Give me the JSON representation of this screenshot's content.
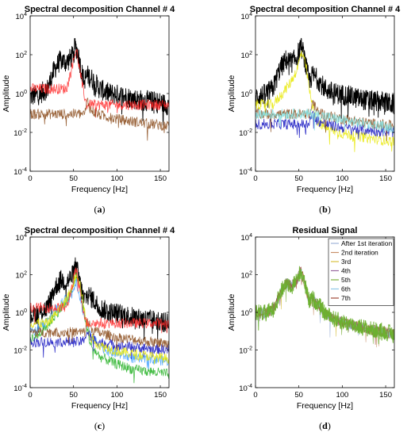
{
  "chart_data": [
    {
      "type": "line",
      "panel": "a",
      "caption": "(a)",
      "title": "Spectral decomposition Channel # 4",
      "xlabel": "Frequency [Hz]",
      "ylabel": "Amplitude",
      "xlim": [
        0,
        160
      ],
      "ylim_log10": [
        -4,
        4
      ],
      "yscale": "log",
      "x_ticks": [
        "0",
        "50",
        "100",
        "150"
      ],
      "y_ticks": [
        {
          "base": "10",
          "exp": "4"
        },
        {
          "base": "10",
          "exp": "2"
        },
        {
          "base": "10",
          "exp": "0"
        },
        {
          "base": "10",
          "exp": "-2"
        },
        {
          "base": "10",
          "exp": "-4"
        }
      ],
      "series": [
        {
          "color": "#000000",
          "kind": "spectrum",
          "x": [
            1,
            10,
            20,
            28,
            35,
            42,
            48,
            52,
            55,
            58,
            62,
            66,
            72,
            80,
            90,
            100,
            110,
            120,
            130,
            140,
            150,
            158
          ],
          "y": [
            0.8,
            1,
            2,
            20,
            60,
            45,
            90,
            300,
            150,
            30,
            5,
            10,
            6,
            2,
            1.2,
            1,
            0.8,
            0.6,
            0.5,
            0.45,
            0.4,
            0.3
          ]
        },
        {
          "color": "#ff2020",
          "kind": "component",
          "x": [
            42,
            46,
            50,
            53,
            56,
            60,
            65
          ],
          "y": [
            2,
            10,
            60,
            250,
            40,
            3,
            0.3
          ]
        },
        {
          "color": "#8a4a1a",
          "kind": "component",
          "x": [
            63,
            66,
            70,
            80,
            90,
            100,
            120,
            140,
            158
          ],
          "y": [
            0.1,
            0.5,
            0.15,
            0.09,
            0.07,
            0.055,
            0.04,
            0.03,
            0.025
          ]
        }
      ]
    },
    {
      "type": "line",
      "panel": "b",
      "caption": "(b)",
      "title": "Spectral decomposition Channel # 4",
      "xlabel": "Frequency [Hz]",
      "ylabel": "Amplitude",
      "xlim": [
        0,
        160
      ],
      "ylim_log10": [
        -4,
        4
      ],
      "yscale": "log",
      "x_ticks": [
        "0",
        "50",
        "100",
        "150"
      ],
      "y_ticks": [
        {
          "base": "10",
          "exp": "4"
        },
        {
          "base": "10",
          "exp": "2"
        },
        {
          "base": "10",
          "exp": "0"
        },
        {
          "base": "10",
          "exp": "-2"
        },
        {
          "base": "10",
          "exp": "-4"
        }
      ],
      "series": [
        {
          "color": "#000000",
          "kind": "spectrum",
          "x": [
            1,
            10,
            20,
            28,
            35,
            42,
            48,
            52,
            55,
            58,
            62,
            66,
            72,
            80,
            90,
            100,
            110,
            120,
            130,
            140,
            150,
            158
          ],
          "y": [
            0.8,
            1,
            2,
            20,
            60,
            45,
            90,
            300,
            150,
            30,
            5,
            10,
            6,
            2,
            1.2,
            1,
            0.8,
            0.6,
            0.5,
            0.45,
            0.4,
            0.3
          ]
        },
        {
          "color": "#e8e800",
          "kind": "component",
          "x": [
            20,
            30,
            40,
            48,
            53,
            58,
            64,
            70,
            80,
            100,
            120,
            140,
            158
          ],
          "y": [
            0.3,
            1,
            4,
            20,
            150,
            30,
            0.5,
            0.05,
            0.02,
            0.01,
            0.007,
            0.005,
            0.004
          ]
        },
        {
          "color": "#1010c0",
          "kind": "component",
          "x": [
            60,
            66,
            70,
            80,
            100,
            120,
            140,
            158
          ],
          "y": [
            0.03,
            0.1,
            0.05,
            0.03,
            0.02,
            0.016,
            0.013,
            0.012
          ]
        },
        {
          "color": "#8a4a1a",
          "kind": "component",
          "x": [
            63,
            66,
            70,
            80,
            90,
            100,
            120,
            140,
            158
          ],
          "y": [
            0.1,
            0.5,
            0.15,
            0.09,
            0.07,
            0.055,
            0.04,
            0.03,
            0.025
          ]
        },
        {
          "color": "#80e0e0",
          "kind": "component",
          "x": [
            60,
            70,
            90,
            110,
            130,
            158
          ],
          "y": [
            0.1,
            0.1,
            0.06,
            0.04,
            0.03,
            0.02
          ]
        }
      ]
    },
    {
      "type": "line",
      "panel": "c",
      "caption": "(c)",
      "title": "Spectral decomposition Channel # 4",
      "xlabel": "Frequency [Hz]",
      "ylabel": "Amplitude",
      "xlim": [
        0,
        160
      ],
      "ylim_log10": [
        -4,
        4
      ],
      "yscale": "log",
      "x_ticks": [
        "0",
        "50",
        "100",
        "150"
      ],
      "y_ticks": [
        {
          "base": "10",
          "exp": "4"
        },
        {
          "base": "10",
          "exp": "2"
        },
        {
          "base": "10",
          "exp": "0"
        },
        {
          "base": "10",
          "exp": "-2"
        },
        {
          "base": "10",
          "exp": "-4"
        }
      ],
      "series": [
        {
          "color": "#000000",
          "kind": "spectrum",
          "x": [
            1,
            10,
            20,
            28,
            35,
            42,
            48,
            52,
            55,
            58,
            62,
            66,
            72,
            80,
            90,
            100,
            110,
            120,
            130,
            140,
            150,
            158
          ],
          "y": [
            0.8,
            1,
            2,
            20,
            60,
            45,
            90,
            300,
            150,
            30,
            5,
            10,
            6,
            2,
            1.2,
            1,
            0.8,
            0.6,
            0.5,
            0.45,
            0.4,
            0.3
          ]
        },
        {
          "color": "#22b022",
          "kind": "component",
          "x": [
            5,
            20,
            30,
            40,
            48,
            53,
            58,
            64,
            70,
            80,
            100,
            120,
            140,
            158
          ],
          "y": [
            0.05,
            0.2,
            1,
            3,
            15,
            120,
            20,
            0.3,
            0.02,
            0.005,
            0.002,
            0.001,
            0.0008,
            0.0006
          ]
        },
        {
          "color": "#40a0ff",
          "kind": "component",
          "x": [
            5,
            20,
            35,
            48,
            53,
            60,
            70,
            90,
            120,
            158
          ],
          "y": [
            0.1,
            0.5,
            3,
            10,
            60,
            2,
            0.05,
            0.01,
            0.004,
            0.003
          ]
        },
        {
          "color": "#1010c0",
          "kind": "component",
          "x": [
            60,
            66,
            70,
            80,
            100,
            120,
            140,
            158
          ],
          "y": [
            0.03,
            0.1,
            0.05,
            0.03,
            0.02,
            0.016,
            0.013,
            0.012
          ]
        },
        {
          "color": "#8a4a1a",
          "kind": "component",
          "x": [
            63,
            66,
            70,
            80,
            90,
            100,
            120,
            140,
            158
          ],
          "y": [
            0.1,
            0.5,
            0.15,
            0.09,
            0.07,
            0.055,
            0.04,
            0.03,
            0.025
          ]
        },
        {
          "color": "#e8e800",
          "kind": "component",
          "x": [
            20,
            30,
            40,
            48,
            53,
            58,
            64,
            70,
            80,
            100,
            120,
            140,
            158
          ],
          "y": [
            0.3,
            1,
            4,
            20,
            150,
            30,
            0.5,
            0.05,
            0.02,
            0.01,
            0.007,
            0.005,
            0.004
          ]
        },
        {
          "color": "#ff3030",
          "kind": "component",
          "x": [
            42,
            46,
            50,
            53,
            56,
            60,
            65
          ],
          "y": [
            2,
            10,
            60,
            250,
            40,
            3,
            0.3
          ]
        }
      ]
    },
    {
      "type": "line",
      "panel": "d",
      "caption": "(d)",
      "title": "Residual Signal",
      "xlabel": "Frequency [Hz]",
      "ylabel": "Amplitude",
      "xlim": [
        0,
        160
      ],
      "ylim_log10": [
        -4,
        4
      ],
      "yscale": "log",
      "x_ticks": [
        "0",
        "50",
        "100",
        "150"
      ],
      "y_ticks": [
        {
          "base": "10",
          "exp": "4"
        },
        {
          "base": "10",
          "exp": "2"
        },
        {
          "base": "10",
          "exp": "0"
        },
        {
          "base": "10",
          "exp": "-2"
        },
        {
          "base": "10",
          "exp": "-4"
        }
      ],
      "legend_position": "top-right",
      "series": [
        {
          "name": "After 1st iteration",
          "color": "#9fb3d8",
          "x": [
            1,
            10,
            20,
            28,
            35,
            42,
            48,
            52,
            55,
            58,
            62,
            66,
            72,
            80,
            90,
            100,
            110,
            120,
            130,
            140,
            150,
            158
          ],
          "y": [
            1.2,
            1,
            1.5,
            10,
            40,
            30,
            60,
            180,
            80,
            20,
            4,
            6,
            3,
            1,
            0.5,
            0.35,
            0.25,
            0.2,
            0.15,
            0.12,
            0.1,
            0.08
          ]
        },
        {
          "name": "2nd iteration",
          "color": "#c8906a",
          "x": [
            1,
            10,
            20,
            28,
            35,
            42,
            48,
            52,
            55,
            58,
            62,
            66,
            72,
            80,
            90,
            100,
            110,
            120,
            130,
            140,
            150,
            158
          ],
          "y": [
            1.2,
            1,
            1.5,
            10,
            40,
            30,
            60,
            180,
            80,
            20,
            4,
            6,
            3,
            1,
            0.5,
            0.35,
            0.25,
            0.2,
            0.15,
            0.12,
            0.1,
            0.08
          ]
        },
        {
          "name": "3rd",
          "color": "#d8c040",
          "x": [
            1,
            10,
            20,
            28,
            35,
            42,
            48,
            52,
            55,
            58,
            62,
            66,
            72,
            80,
            90,
            100,
            110,
            120,
            130,
            140,
            150,
            158
          ],
          "y": [
            1.2,
            1,
            1.5,
            10,
            40,
            30,
            60,
            180,
            80,
            20,
            4,
            6,
            3,
            1,
            0.5,
            0.35,
            0.25,
            0.2,
            0.15,
            0.12,
            0.1,
            0.08
          ]
        },
        {
          "name": "4th",
          "color": "#9a6aa0",
          "x": [
            1,
            10,
            20,
            28,
            35,
            42,
            48,
            52,
            55,
            58,
            62,
            66,
            72,
            80,
            90,
            100,
            110,
            120,
            130,
            140,
            150,
            158
          ],
          "y": [
            1.2,
            1,
            1.5,
            10,
            40,
            30,
            60,
            180,
            80,
            20,
            4,
            6,
            3,
            1,
            0.5,
            0.35,
            0.25,
            0.2,
            0.15,
            0.12,
            0.1,
            0.08
          ]
        },
        {
          "name": "5th",
          "color": "#7fb040",
          "x": [
            1,
            10,
            20,
            28,
            35,
            42,
            48,
            52,
            55,
            58,
            62,
            66,
            72,
            80,
            90,
            100,
            110,
            120,
            130,
            140,
            150,
            158
          ],
          "y": [
            1.2,
            1,
            1.5,
            10,
            40,
            30,
            60,
            180,
            80,
            20,
            4,
            6,
            3,
            1,
            0.5,
            0.35,
            0.25,
            0.2,
            0.15,
            0.12,
            0.1,
            0.08
          ]
        },
        {
          "name": "6th",
          "color": "#90c8e8",
          "x": [
            1,
            10,
            20,
            28,
            35,
            42,
            48,
            52,
            55,
            58,
            62,
            66,
            72,
            80,
            90,
            100,
            110,
            120,
            130,
            140,
            150,
            158
          ],
          "y": [
            1.2,
            1,
            1.5,
            10,
            40,
            30,
            60,
            180,
            80,
            20,
            4,
            6,
            3,
            1,
            0.5,
            0.35,
            0.25,
            0.2,
            0.15,
            0.12,
            0.1,
            0.08
          ]
        },
        {
          "name": "7th",
          "color": "#a04a3a",
          "x": [
            1,
            10,
            20,
            28,
            35,
            42,
            48,
            52,
            55,
            58,
            62,
            66,
            72,
            80,
            90,
            100,
            110,
            120,
            130,
            140,
            150,
            158
          ],
          "y": [
            1.2,
            1,
            1.5,
            10,
            40,
            30,
            60,
            180,
            80,
            20,
            4,
            6,
            3,
            1,
            0.5,
            0.35,
            0.25,
            0.2,
            0.15,
            0.12,
            0.1,
            0.08
          ]
        }
      ],
      "overlay_color": "#6cb030"
    }
  ]
}
